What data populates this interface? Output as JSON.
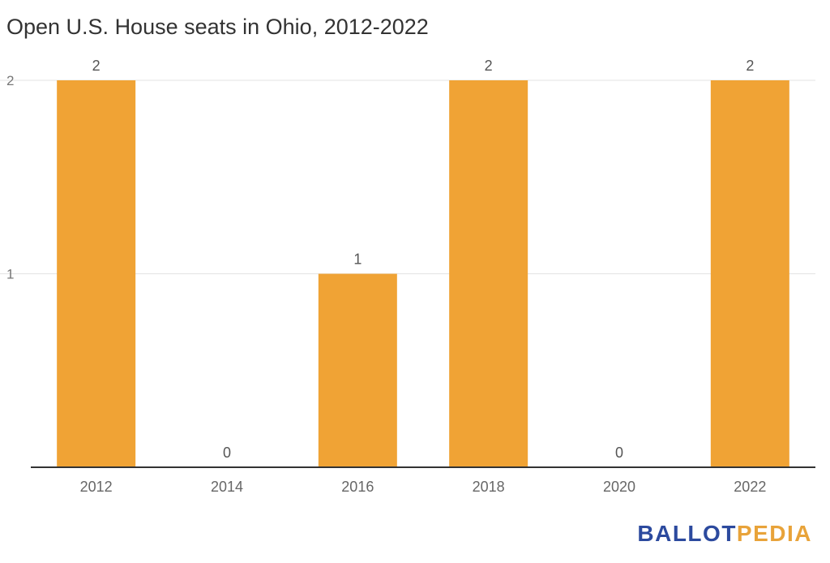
{
  "chart_data": {
    "type": "bar",
    "title": "Open U.S. House seats in Ohio, 2012-2022",
    "categories": [
      "2012",
      "2014",
      "2016",
      "2018",
      "2020",
      "2022"
    ],
    "values": [
      2,
      0,
      1,
      2,
      0,
      2
    ],
    "ylim": [
      0,
      2
    ],
    "yticks": [
      "1",
      "2"
    ],
    "xlabel": "",
    "ylabel": "",
    "grid": true,
    "bar_color": "#f0a335"
  },
  "logo": {
    "part1": "BALLOT",
    "part2": "PEDIA",
    "colors": [
      "#2c4a9e",
      "#e8a33a"
    ]
  }
}
